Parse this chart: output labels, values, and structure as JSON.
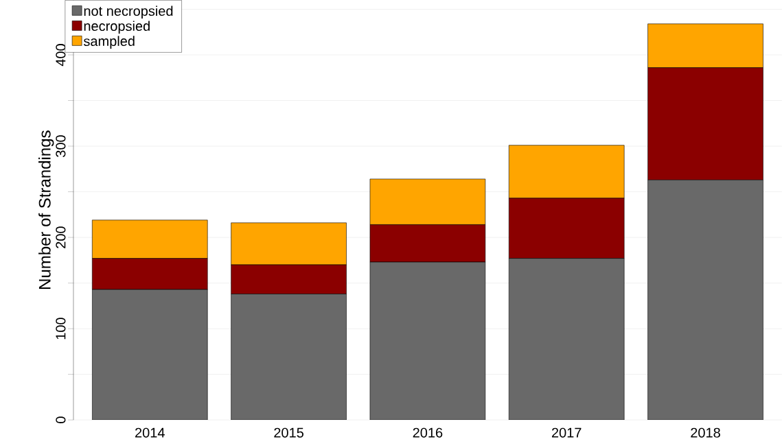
{
  "chart_data": {
    "type": "bar",
    "stacked": true,
    "ylabel": "Number of Strandings",
    "categories": [
      "2014",
      "2015",
      "2016",
      "2017",
      "2018"
    ],
    "series": [
      {
        "name": "not necropsied",
        "color": "#696969",
        "values": [
          143,
          138,
          173,
          177,
          263
        ]
      },
      {
        "name": "necropsied",
        "color": "#8b0000",
        "values": [
          34,
          32,
          41,
          66,
          123
        ]
      },
      {
        "name": "sampled",
        "color": "#ffa500",
        "values": [
          42,
          46,
          50,
          58,
          48
        ]
      }
    ],
    "ylim": [
      0,
      460
    ],
    "yticks": [
      0,
      {
        "value": 50,
        "label": null
      },
      100,
      {
        "value": 150,
        "label": null
      },
      200,
      {
        "value": 250,
        "label": null
      },
      300,
      {
        "value": 350,
        "label": null
      },
      400,
      {
        "value": 450,
        "label": null
      }
    ],
    "grid": "y",
    "legend": "top left"
  }
}
